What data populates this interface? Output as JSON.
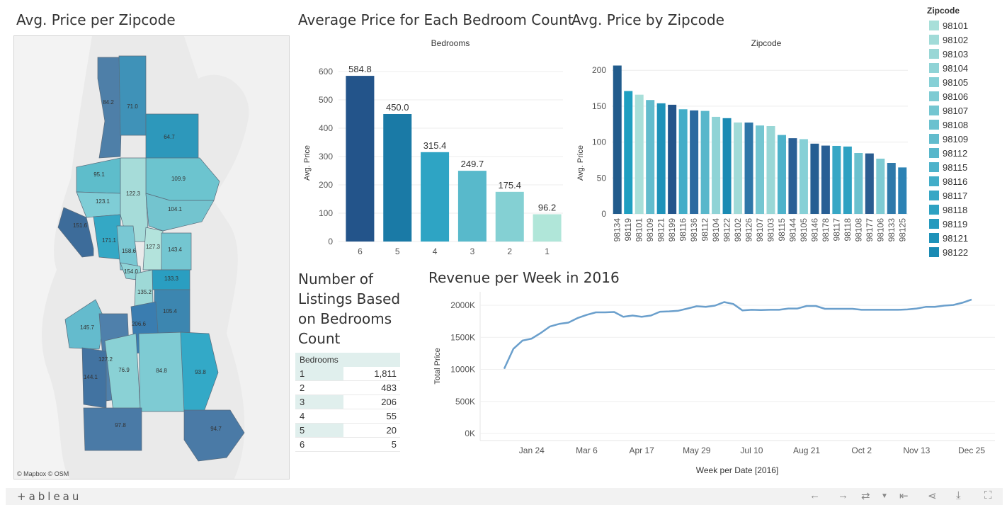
{
  "titles": {
    "map": "Avg. Price per Zipcode",
    "bedroom_bar": "Average Price for Each Bedroom Count",
    "zip_bar": "Avg. Price by Zipcode",
    "listings_line1": "Number of",
    "listings_line2": "Listings Based",
    "listings_line3": "on Bedrooms",
    "listings_line4": "Count",
    "revenue": "Revenue per Week in 2016"
  },
  "map": {
    "credit": "© Mapbox  © OSM",
    "labels": [
      {
        "text": "84.2",
        "fill": "#4e7fa8"
      },
      {
        "text": "71.0",
        "fill": "#3f92b8"
      },
      {
        "text": "64.7",
        "fill": "#2d98bb"
      },
      {
        "text": "95.1",
        "fill": "#5ebdcb"
      },
      {
        "text": "109.9",
        "fill": "#6cc4cf"
      },
      {
        "text": "123.1",
        "fill": "#7fcdd6"
      },
      {
        "text": "122.3",
        "fill": "#a6dcd9"
      },
      {
        "text": "104.1",
        "fill": "#73c4cf"
      },
      {
        "text": "151.6",
        "fill": "#3d6c9a"
      },
      {
        "text": "171.1",
        "fill": "#34a8c5"
      },
      {
        "text": "158.6",
        "fill": "#79c8d3"
      },
      {
        "text": "127.3",
        "fill": "#b3e3dc"
      },
      {
        "text": "143.4",
        "fill": "#74c6d1"
      },
      {
        "text": "154.0",
        "fill": "#8fd3d6"
      },
      {
        "text": "133.3",
        "fill": "#2a9ec1"
      },
      {
        "text": "135.2",
        "fill": "#9ed9d7"
      },
      {
        "text": "105.4",
        "fill": "#3c86b0"
      },
      {
        "text": "206.6",
        "fill": "#3a7db0"
      },
      {
        "text": "145.7",
        "fill": "#64bbcd"
      },
      {
        "text": "127.2",
        "fill": "#4f80ab"
      },
      {
        "text": "144.1",
        "fill": "#4273a1"
      },
      {
        "text": "76.9",
        "fill": "#8ad1d5"
      },
      {
        "text": "84.8",
        "fill": "#7ecbd3"
      },
      {
        "text": "93.8",
        "fill": "#33a9c7"
      },
      {
        "text": "97.8",
        "fill": "#4a7aa6"
      },
      {
        "text": "94.7",
        "fill": "#4a7aa6"
      }
    ]
  },
  "bedroom_bar": {
    "header": "Bedrooms",
    "yaxis_title": "Avg. Price"
  },
  "zip_bar": {
    "header": "Zipcode",
    "yaxis_title": "Avg. Price"
  },
  "legend": {
    "title": "Zipcode",
    "items": [
      {
        "label": "98101",
        "color": "#a8dfd9"
      },
      {
        "label": "98102",
        "color": "#a1dbd8"
      },
      {
        "label": "98103",
        "color": "#99d7d6"
      },
      {
        "label": "98104",
        "color": "#8fd3d6"
      },
      {
        "label": "98105",
        "color": "#86d0d6"
      },
      {
        "label": "98106",
        "color": "#7ecbd3"
      },
      {
        "label": "98107",
        "color": "#74c6d1"
      },
      {
        "label": "98108",
        "color": "#6bc1cf"
      },
      {
        "label": "98109",
        "color": "#62bccd"
      },
      {
        "label": "98112",
        "color": "#58b7cb"
      },
      {
        "label": "98115",
        "color": "#4db2ca"
      },
      {
        "label": "98116",
        "color": "#42adc8"
      },
      {
        "label": "98117",
        "color": "#37a7c5"
      },
      {
        "label": "98118",
        "color": "#2ea1c2"
      },
      {
        "label": "98119",
        "color": "#259abe"
      },
      {
        "label": "98121",
        "color": "#1e92b9"
      },
      {
        "label": "98122",
        "color": "#1a8ab3"
      }
    ]
  },
  "listings_table": {
    "header": "Bedrooms",
    "rows": [
      {
        "bedrooms": "1",
        "count": "1,811"
      },
      {
        "bedrooms": "2",
        "count": "483"
      },
      {
        "bedrooms": "3",
        "count": "206"
      },
      {
        "bedrooms": "4",
        "count": "55"
      },
      {
        "bedrooms": "5",
        "count": "20"
      },
      {
        "bedrooms": "6",
        "count": "5"
      }
    ]
  },
  "footer": {
    "logo": "+ableau"
  },
  "chart_data": [
    {
      "type": "bar",
      "title": "Average Price for Each Bedroom Count",
      "header": "Bedrooms",
      "ylabel": "Avg. Price",
      "categories": [
        "6",
        "5",
        "4",
        "3",
        "2",
        "1"
      ],
      "values": [
        584.8,
        450.0,
        315.4,
        249.7,
        175.4,
        96.2
      ],
      "value_labels": [
        "584.8",
        "450.0",
        "315.4",
        "249.7",
        "175.4",
        "96.2"
      ],
      "colors": [
        "#23548a",
        "#1a7aa6",
        "#2ea4c4",
        "#58b9cb",
        "#84d0d3",
        "#b0e6d9"
      ],
      "ylim": [
        0,
        620
      ],
      "yticks": [
        0,
        100,
        200,
        300,
        400,
        500,
        600
      ]
    },
    {
      "type": "bar",
      "title": "Avg. Price by Zipcode",
      "header": "Zipcode",
      "ylabel": "Avg. Price",
      "categories": [
        "98134",
        "98119",
        "98101",
        "98109",
        "98121",
        "98199",
        "98116",
        "98136",
        "98112",
        "98104",
        "98122",
        "98102",
        "98126",
        "98107",
        "98103",
        "98115",
        "98144",
        "98105",
        "98146",
        "98178",
        "98117",
        "98118",
        "98108",
        "98177",
        "98106",
        "98133",
        "98125"
      ],
      "values": [
        206.6,
        171.1,
        166.0,
        158.6,
        154.0,
        152.0,
        145.7,
        144.1,
        143.4,
        135.2,
        133.3,
        127.3,
        127.2,
        123.1,
        122.3,
        109.9,
        105.4,
        104.1,
        97.8,
        95.1,
        94.7,
        93.8,
        84.8,
        84.2,
        76.9,
        71.0,
        64.7
      ],
      "colors": [
        "#215b8c",
        "#1f9fc1",
        "#a8dfd9",
        "#62bccd",
        "#1e92b9",
        "#23548a",
        "#42adc8",
        "#2b6aa0",
        "#58b7cb",
        "#8fd3d6",
        "#1a8ab3",
        "#a1dbd8",
        "#2e76a8",
        "#74c6d1",
        "#99d7d6",
        "#4db2ca",
        "#2a5f95",
        "#86d0d6",
        "#255e92",
        "#285f95",
        "#37a7c5",
        "#2ea1c2",
        "#6bc1cf",
        "#2a5c90",
        "#7ecbd3",
        "#2f79aa",
        "#2c82b4"
      ],
      "ylim": [
        0,
        215
      ],
      "yticks": [
        0,
        50,
        100,
        150,
        200
      ]
    },
    {
      "type": "line",
      "title": "Revenue per Week in 2016",
      "xlabel": "Week per Date [2016]",
      "ylabel": "Total Price",
      "x_ticks": [
        "Jan 24",
        "Mar 6",
        "Apr 17",
        "May 29",
        "Jul 10",
        "Aug 21",
        "Oct 2",
        "Nov 13",
        "Dec 25"
      ],
      "y_ticks": [
        "0K",
        "500K",
        "1000K",
        "1500K",
        "2000K"
      ],
      "ylim": [
        0,
        2100000
      ],
      "series": [
        {
          "color": "#6a9fcc",
          "x_weeks_from_jan3": [
            0,
            1,
            2,
            3,
            4,
            5,
            6,
            7,
            8,
            9,
            10,
            11,
            12,
            13,
            14,
            15,
            16,
            17,
            18,
            19,
            20,
            21,
            22,
            23,
            24,
            25,
            26,
            27,
            28,
            29,
            30,
            31,
            32,
            33,
            34,
            35,
            36,
            37,
            38,
            39,
            40,
            41,
            42,
            43,
            44,
            45,
            46,
            47,
            48,
            49,
            50,
            51
          ],
          "values": [
            1010000,
            1320000,
            1450000,
            1480000,
            1570000,
            1670000,
            1710000,
            1730000,
            1800000,
            1850000,
            1890000,
            1890000,
            1895000,
            1820000,
            1840000,
            1820000,
            1840000,
            1900000,
            1905000,
            1915000,
            1950000,
            1985000,
            1975000,
            1995000,
            2050000,
            2020000,
            1920000,
            1930000,
            1925000,
            1930000,
            1930000,
            1950000,
            1950000,
            1990000,
            1990000,
            1945000,
            1945000,
            1945000,
            1945000,
            1930000,
            1930000,
            1930000,
            1930000,
            1930000,
            1935000,
            1950000,
            1975000,
            1975000,
            1995000,
            2005000,
            2040000,
            2090000
          ]
        }
      ]
    }
  ]
}
